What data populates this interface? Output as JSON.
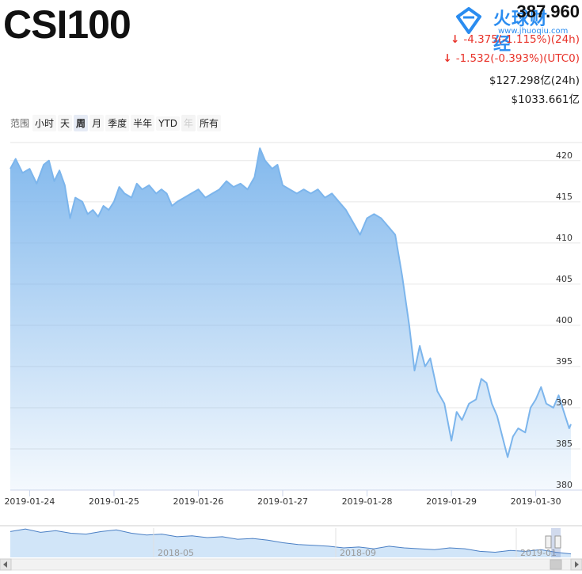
{
  "header": {
    "title": "CSI100",
    "price": "387.960",
    "change_24h": "-4.375(-1.115%)(24h)",
    "change_utc": "-1.532(-0.393%)(UTC0)",
    "volume_24h": "$127.298亿(24h)",
    "market_cap": "$1033.661亿",
    "down_arrow_icon": "arrow-down-icon",
    "colors": {
      "down": "#e8332a",
      "series": "#7cb5ec",
      "logo": "#2a8cf0"
    }
  },
  "watermark": {
    "name": "火球财经",
    "url": "www.jhuoqiu.com"
  },
  "range_selector": {
    "label": "范围",
    "buttons": [
      "小时",
      "天",
      "周",
      "月",
      "季度",
      "半年",
      "YTD",
      "年",
      "所有"
    ],
    "active": "周",
    "disabled": "年"
  },
  "chart_data": {
    "type": "area",
    "y_axis_position": "right",
    "ylim": [
      380,
      422
    ],
    "yticks": [
      380,
      385,
      390,
      395,
      400,
      405,
      410,
      415,
      420
    ],
    "xlim": [
      "2019-01-23 18:30",
      "2019-01-30 10:00"
    ],
    "xticks": [
      "2019-01-24",
      "2019-01-25",
      "2019-01-26",
      "2019-01-27",
      "2019-01-28",
      "2019-01-29",
      "2019-01-30"
    ],
    "grid": true,
    "series": [
      {
        "values": [
          [
            "2019-01-23 18:30",
            419.0
          ],
          [
            "2019-01-23 20:00",
            420.2
          ],
          [
            "2019-01-23 22:00",
            418.5
          ],
          [
            "2019-01-24 00:00",
            419.0
          ],
          [
            "2019-01-24 02:00",
            417.2
          ],
          [
            "2019-01-24 04:00",
            419.5
          ],
          [
            "2019-01-24 05:30",
            420.0
          ],
          [
            "2019-01-24 07:00",
            417.5
          ],
          [
            "2019-01-24 08:30",
            418.8
          ],
          [
            "2019-01-24 10:00",
            417.0
          ],
          [
            "2019-01-24 11:30",
            413.0
          ],
          [
            "2019-01-24 13:00",
            415.5
          ],
          [
            "2019-01-24 15:00",
            415.0
          ],
          [
            "2019-01-24 16:30",
            413.5
          ],
          [
            "2019-01-24 18:00",
            414.0
          ],
          [
            "2019-01-24 19:30",
            413.2
          ],
          [
            "2019-01-24 21:00",
            414.5
          ],
          [
            "2019-01-24 22:30",
            414.0
          ],
          [
            "2019-01-25 00:00",
            415.0
          ],
          [
            "2019-01-25 01:30",
            416.8
          ],
          [
            "2019-01-25 03:00",
            416.0
          ],
          [
            "2019-01-25 05:00",
            415.5
          ],
          [
            "2019-01-25 06:30",
            417.2
          ],
          [
            "2019-01-25 08:00",
            416.5
          ],
          [
            "2019-01-25 10:00",
            417.0
          ],
          [
            "2019-01-25 12:00",
            416.0
          ],
          [
            "2019-01-25 13:30",
            416.5
          ],
          [
            "2019-01-25 15:00",
            416.0
          ],
          [
            "2019-01-25 16:30",
            414.5
          ],
          [
            "2019-01-25 18:00",
            415.0
          ],
          [
            "2019-01-25 20:00",
            415.5
          ],
          [
            "2019-01-25 22:00",
            416.0
          ],
          [
            "2019-01-26 00:00",
            416.5
          ],
          [
            "2019-01-26 02:00",
            415.5
          ],
          [
            "2019-01-26 04:00",
            416.0
          ],
          [
            "2019-01-26 06:00",
            416.5
          ],
          [
            "2019-01-26 08:00",
            417.5
          ],
          [
            "2019-01-26 10:00",
            416.8
          ],
          [
            "2019-01-26 12:00",
            417.2
          ],
          [
            "2019-01-26 14:00",
            416.5
          ],
          [
            "2019-01-26 16:00",
            418.0
          ],
          [
            "2019-01-26 17:30",
            421.5
          ],
          [
            "2019-01-26 19:00",
            420.0
          ],
          [
            "2019-01-26 21:00",
            419.0
          ],
          [
            "2019-01-26 22:30",
            419.5
          ],
          [
            "2019-01-27 00:00",
            417.0
          ],
          [
            "2019-01-27 02:00",
            416.5
          ],
          [
            "2019-01-27 04:00",
            416.0
          ],
          [
            "2019-01-27 06:00",
            416.5
          ],
          [
            "2019-01-27 08:00",
            416.0
          ],
          [
            "2019-01-27 10:00",
            416.5
          ],
          [
            "2019-01-27 12:00",
            415.5
          ],
          [
            "2019-01-27 14:00",
            416.0
          ],
          [
            "2019-01-27 16:00",
            415.0
          ],
          [
            "2019-01-27 18:00",
            414.0
          ],
          [
            "2019-01-27 20:00",
            412.5
          ],
          [
            "2019-01-27 22:00",
            411.0
          ],
          [
            "2019-01-28 00:00",
            413.0
          ],
          [
            "2019-01-28 02:00",
            413.5
          ],
          [
            "2019-01-28 04:00",
            413.0
          ],
          [
            "2019-01-28 06:00",
            412.0
          ],
          [
            "2019-01-28 08:00",
            411.0
          ],
          [
            "2019-01-28 10:00",
            406.0
          ],
          [
            "2019-01-28 12:00",
            400.0
          ],
          [
            "2019-01-28 13:30",
            394.5
          ],
          [
            "2019-01-28 15:00",
            397.5
          ],
          [
            "2019-01-28 16:30",
            395.0
          ],
          [
            "2019-01-28 18:00",
            396.0
          ],
          [
            "2019-01-28 20:00",
            392.0
          ],
          [
            "2019-01-28 22:00",
            390.5
          ],
          [
            "2019-01-29 00:00",
            386.0
          ],
          [
            "2019-01-29 01:30",
            389.5
          ],
          [
            "2019-01-29 03:00",
            388.5
          ],
          [
            "2019-01-29 05:00",
            390.5
          ],
          [
            "2019-01-29 07:00",
            391.0
          ],
          [
            "2019-01-29 08:30",
            393.5
          ],
          [
            "2019-01-29 10:00",
            393.0
          ],
          [
            "2019-01-29 11:30",
            390.5
          ],
          [
            "2019-01-29 13:00",
            389.0
          ],
          [
            "2019-01-29 14:30",
            386.5
          ],
          [
            "2019-01-29 16:00",
            384.0
          ],
          [
            "2019-01-29 17:30",
            386.5
          ],
          [
            "2019-01-29 19:00",
            387.5
          ],
          [
            "2019-01-29 21:00",
            387.0
          ],
          [
            "2019-01-29 22:30",
            390.0
          ],
          [
            "2019-01-30 00:00",
            391.0
          ],
          [
            "2019-01-30 01:30",
            392.5
          ],
          [
            "2019-01-30 03:00",
            390.5
          ],
          [
            "2019-01-30 05:00",
            390.0
          ],
          [
            "2019-01-30 06:30",
            391.5
          ],
          [
            "2019-01-30 08:00",
            389.5
          ],
          [
            "2019-01-30 09:30",
            387.5
          ],
          [
            "2019-01-30 10:00",
            388.0
          ]
        ]
      }
    ]
  },
  "navigator": {
    "labels": [
      "2018-05",
      "2018-09",
      "2019-01"
    ],
    "values": [
      416,
      419,
      415,
      417,
      414,
      413,
      416,
      418,
      414,
      412,
      413,
      410,
      411,
      409,
      410,
      407,
      408,
      406,
      403,
      401,
      400,
      399,
      397,
      398,
      396,
      399,
      397,
      396,
      395,
      397,
      396,
      393,
      392,
      394,
      393,
      395,
      392,
      390
    ]
  }
}
